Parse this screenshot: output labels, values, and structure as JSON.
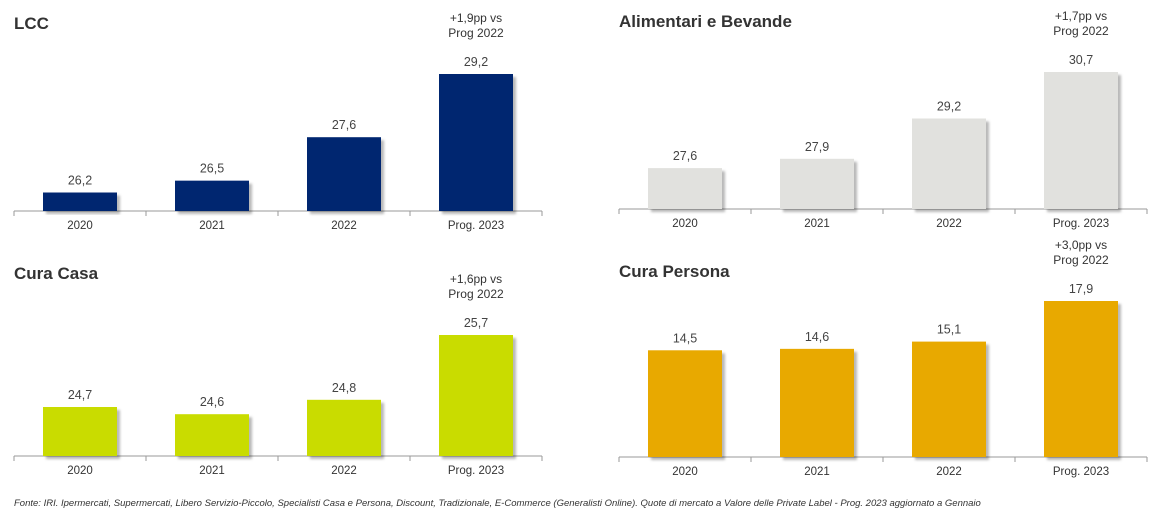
{
  "footnote": "Fonte: IRI. Ipermercati, Supermercati, Libero Servizio-Piccolo, Specialisti Casa e Persona, Discount, Tradizionale, E-Commerce (Generalisti Online). Quote di mercato a Valore delle Private Label - Prog. 2023 aggiornato a Gennaio",
  "chart_data": [
    {
      "type": "bar",
      "title": "LCC",
      "categories": [
        "2020",
        "2021",
        "2022",
        "Prog. 2023"
      ],
      "values": [
        26.2,
        26.5,
        27.6,
        29.2
      ],
      "data_labels": [
        "26,2",
        "26,5",
        "27,6",
        "29,2"
      ],
      "annotation": [
        "+1,9pp vs",
        "Prog 2022"
      ],
      "color": "#002570"
    },
    {
      "type": "bar",
      "title": "Alimentari e Bevande",
      "categories": [
        "2020",
        "2021",
        "2022",
        "Prog. 2023"
      ],
      "values": [
        27.6,
        27.9,
        29.2,
        30.7
      ],
      "data_labels": [
        "27,6",
        "27,9",
        "29,2",
        "30,7"
      ],
      "annotation": [
        "+1,7pp vs",
        "Prog 2022"
      ],
      "color": "#e1e1de"
    },
    {
      "type": "bar",
      "title": "Cura Casa",
      "categories": [
        "2020",
        "2021",
        "2022",
        "Prog. 2023"
      ],
      "values": [
        24.7,
        24.6,
        24.8,
        25.7
      ],
      "data_labels": [
        "24,7",
        "24,6",
        "24,8",
        "25,7"
      ],
      "annotation": [
        "+1,6pp vs",
        "Prog 2022"
      ],
      "color": "#c9dc00"
    },
    {
      "type": "bar",
      "title": "Cura Persona",
      "categories": [
        "2020",
        "2021",
        "2022",
        "Prog. 2023"
      ],
      "values": [
        14.5,
        14.6,
        15.1,
        17.9
      ],
      "data_labels": [
        "14,5",
        "14,6",
        "15,1",
        "17,9"
      ],
      "annotation": [
        "+3,0pp vs",
        "Prog 2022"
      ],
      "color": "#e8a900"
    }
  ]
}
